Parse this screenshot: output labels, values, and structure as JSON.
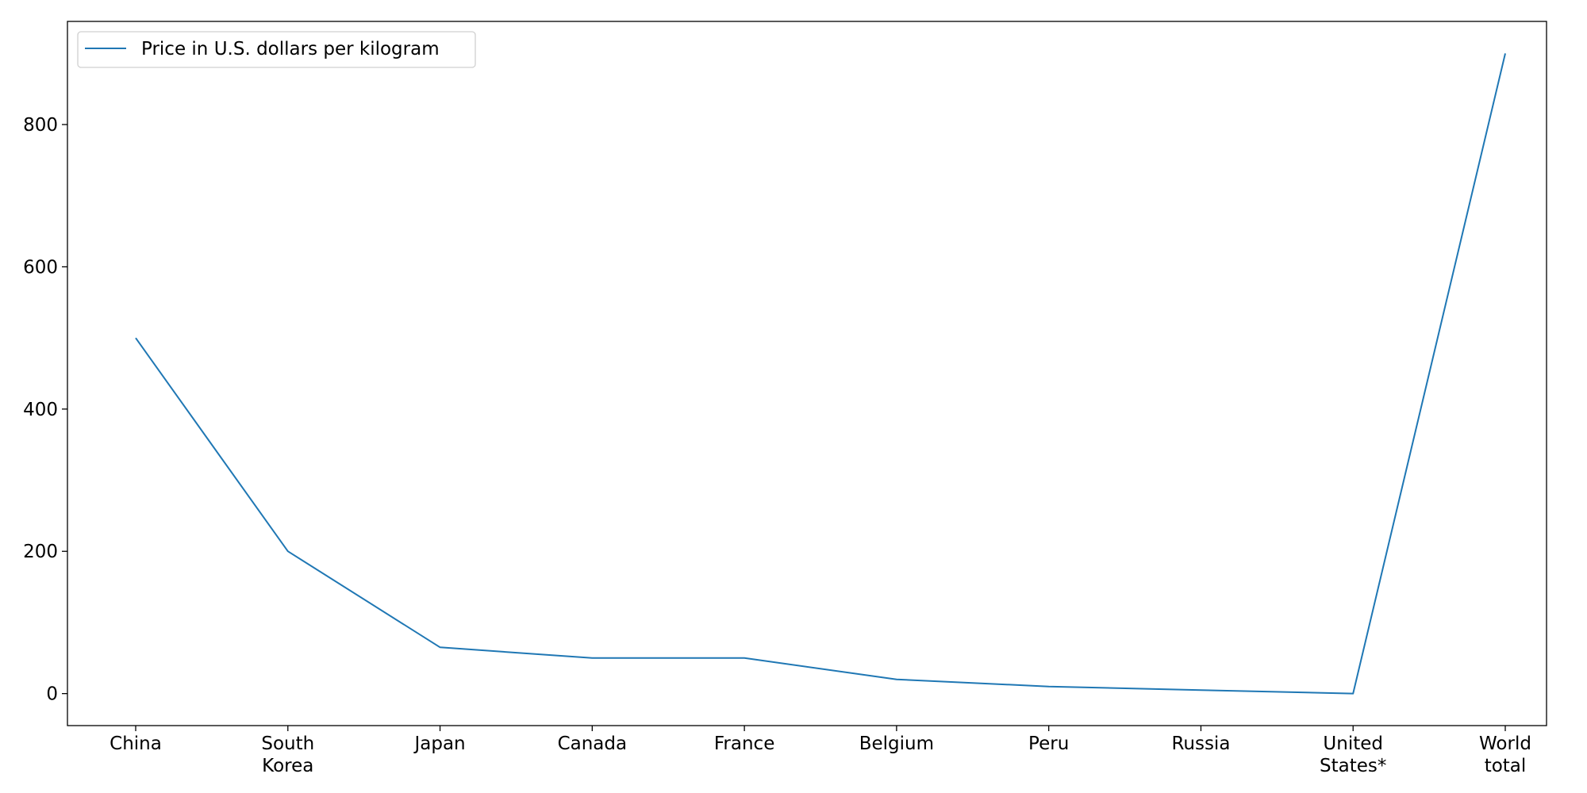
{
  "chart_data": {
    "type": "line",
    "title": "",
    "xlabel": "",
    "ylabel": "",
    "categories": [
      [
        "China"
      ],
      [
        "South",
        "Korea"
      ],
      [
        "Japan"
      ],
      [
        "Canada"
      ],
      [
        "France"
      ],
      [
        "Belgium"
      ],
      [
        "Peru"
      ],
      [
        "Russia"
      ],
      [
        "United",
        "States*"
      ],
      [
        "World",
        "total"
      ]
    ],
    "series": [
      {
        "name": "Price in U.S. dollars per kilogram",
        "color": "#1f77b4",
        "values": [
          500,
          200,
          65,
          50,
          50,
          20,
          10,
          5,
          0,
          900
        ]
      }
    ],
    "ylim": [
      -45,
      945
    ],
    "yticks": [
      0,
      200,
      400,
      600,
      800
    ],
    "grid": false,
    "legend_position": "top-left"
  }
}
